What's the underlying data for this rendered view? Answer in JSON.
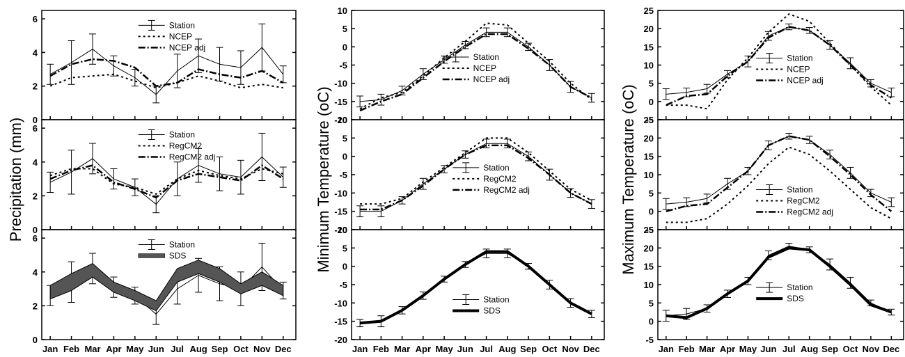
{
  "months": [
    "Jan",
    "Feb",
    "Mar",
    "Apr",
    "May",
    "Jun",
    "Jul",
    "Aug",
    "Sep",
    "Oct",
    "Nov",
    "Dec"
  ],
  "chart_data": [
    {
      "id": "precip-ncep",
      "type": "line",
      "column": 0,
      "row": 0,
      "ylabel": "Precipitation (mm)",
      "ylim": [
        0,
        6.5
      ],
      "yticks": [
        0,
        2,
        4,
        6
      ],
      "legend": [
        "Station",
        "NCEP",
        "NCEP adj"
      ],
      "legend_position": "top-center",
      "series": [
        {
          "name": "Station",
          "style": "errorbar",
          "values": [
            2.7,
            3.4,
            4.2,
            3.2,
            2.5,
            1.5,
            2.9,
            3.8,
            3.3,
            3.1,
            4.3,
            2.7
          ],
          "err": [
            0.6,
            1.3,
            0.9,
            0.6,
            0.5,
            0.5,
            1.0,
            1.0,
            1.0,
            1.0,
            1.4,
            0.5
          ]
        },
        {
          "name": "NCEP",
          "style": "dotted",
          "values": [
            2.0,
            2.5,
            2.6,
            2.7,
            2.3,
            1.9,
            2.2,
            2.6,
            2.3,
            1.9,
            2.1,
            1.9
          ]
        },
        {
          "name": "NCEP adj",
          "style": "dashdot",
          "values": [
            2.6,
            3.3,
            3.6,
            3.5,
            3.1,
            2.0,
            2.2,
            3.0,
            2.7,
            2.5,
            2.9,
            2.2
          ]
        }
      ]
    },
    {
      "id": "precip-regcm2",
      "type": "line",
      "column": 0,
      "row": 1,
      "ylim": [
        0,
        6.5
      ],
      "yticks": [
        0,
        2,
        4,
        6
      ],
      "legend": [
        "Station",
        "RegCM2",
        "RegCM2 adj"
      ],
      "legend_position": "top-center",
      "series": [
        {
          "name": "Station",
          "style": "errorbar",
          "values": [
            2.8,
            3.4,
            4.2,
            3.0,
            2.5,
            1.5,
            3.0,
            3.8,
            3.3,
            3.1,
            4.3,
            3.1
          ],
          "err": [
            0.6,
            1.3,
            0.9,
            0.6,
            0.5,
            0.5,
            1.0,
            1.0,
            1.0,
            1.0,
            1.4,
            0.6
          ]
        },
        {
          "name": "RegCM2",
          "style": "dotted",
          "values": [
            3.2,
            3.6,
            3.6,
            2.7,
            2.5,
            2.1,
            3.0,
            3.5,
            3.2,
            3.0,
            3.6,
            3.3
          ]
        },
        {
          "name": "RegCM2 adj",
          "style": "dashdot",
          "values": [
            3.0,
            3.5,
            3.8,
            2.8,
            2.4,
            1.9,
            2.9,
            3.3,
            3.1,
            2.9,
            3.8,
            3.0
          ]
        }
      ]
    },
    {
      "id": "precip-sds",
      "type": "line",
      "column": 0,
      "row": 2,
      "ylim": [
        0,
        6.5
      ],
      "yticks": [
        0,
        2,
        4,
        6
      ],
      "legend": [
        "Station",
        "SDS"
      ],
      "legend_position": "top-center",
      "series": [
        {
          "name": "Station",
          "style": "errorbar",
          "values": [
            2.6,
            3.4,
            4.2,
            3.1,
            2.6,
            1.5,
            3.0,
            3.8,
            3.3,
            3.0,
            4.3,
            2.9
          ],
          "err": [
            0.6,
            1.2,
            0.9,
            0.6,
            0.5,
            0.6,
            0.9,
            1.0,
            1.0,
            1.0,
            1.4,
            0.5
          ]
        },
        {
          "name": "SDS",
          "style": "band",
          "values": [
            2.8,
            3.4,
            4.1,
            3.1,
            2.6,
            2.0,
            3.8,
            4.3,
            3.8,
            3.0,
            3.6,
            2.9
          ],
          "spread": [
            0.4,
            0.5,
            0.4,
            0.3,
            0.3,
            0.3,
            0.4,
            0.4,
            0.4,
            0.3,
            0.4,
            0.3
          ]
        }
      ]
    },
    {
      "id": "tmin-ncep",
      "type": "line",
      "column": 1,
      "row": 0,
      "ylim": [
        -20,
        10
      ],
      "yticks": [
        -20,
        -15,
        -10,
        -5,
        0,
        5,
        10
      ],
      "legend": [
        "Station",
        "NCEP",
        "NCEP adj"
      ],
      "legend_position": "center-left",
      "series": [
        {
          "name": "Station",
          "style": "errorbar",
          "values": [
            -15,
            -14.5,
            -12,
            -7.5,
            -3.5,
            0.5,
            4,
            4,
            0,
            -5,
            -11,
            -14
          ],
          "err": [
            1.5,
            1.5,
            1.2,
            1.5,
            1.0,
            1.0,
            1.2,
            1.2,
            1.0,
            1.5,
            1.5,
            1.2
          ]
        },
        {
          "name": "NCEP",
          "style": "dotted",
          "values": [
            -17,
            -14,
            -12.5,
            -8,
            -3,
            1.5,
            6.5,
            6,
            1,
            -4,
            -10,
            -14.5
          ]
        },
        {
          "name": "NCEP adj",
          "style": "dashdot",
          "values": [
            -17.5,
            -15,
            -13,
            -8.5,
            -4,
            0,
            3.5,
            3.5,
            -0.5,
            -5,
            -11,
            -14
          ]
        }
      ]
    },
    {
      "id": "tmin-regcm2",
      "type": "line",
      "column": 1,
      "row": 1,
      "ylim": [
        -20,
        10
      ],
      "yticks": [
        -20,
        -15,
        -10,
        -5,
        0,
        5,
        10
      ],
      "legend": [
        "Station",
        "RegCM2",
        "RegCM2 adj"
      ],
      "legend_position": "center-right",
      "series": [
        {
          "name": "Station",
          "style": "errorbar",
          "values": [
            -15,
            -15,
            -12,
            -7.5,
            -3.5,
            0.5,
            3.5,
            3.5,
            0,
            -5,
            -10,
            -13
          ],
          "err": [
            1.5,
            1.5,
            1.0,
            1.5,
            1.0,
            1.0,
            1.2,
            1.2,
            1.2,
            1.5,
            1.2,
            1.2
          ]
        },
        {
          "name": "RegCM2",
          "style": "dotted",
          "values": [
            -13,
            -13,
            -11.5,
            -7,
            -3,
            1,
            5,
            5,
            1,
            -4,
            -9,
            -12
          ]
        },
        {
          "name": "RegCM2 adj",
          "style": "dashdot",
          "values": [
            -14.5,
            -14.5,
            -12,
            -8,
            -3.5,
            0.5,
            3,
            3,
            -0.5,
            -5,
            -10,
            -13
          ]
        }
      ]
    },
    {
      "id": "tmin-sds",
      "type": "line",
      "column": 1,
      "row": 2,
      "ylim": [
        -20,
        10
      ],
      "yticks": [
        -20,
        -15,
        -10,
        -5,
        0,
        5,
        10
      ],
      "legend": [
        "Station",
        "SDS"
      ],
      "legend_position": "bottom-right",
      "series": [
        {
          "name": "Station",
          "style": "errorbar",
          "values": [
            -15.5,
            -15,
            -12,
            -8,
            -3.5,
            0.5,
            3.5,
            3.5,
            0,
            -5,
            -10,
            -13
          ],
          "err": [
            1.0,
            1.5,
            1.0,
            1.0,
            0.8,
            0.8,
            1.2,
            1.2,
            0.8,
            1.2,
            1.2,
            1.0
          ]
        },
        {
          "name": "SDS",
          "style": "thick",
          "values": [
            -15.5,
            -15,
            -12,
            -8,
            -3.5,
            0.5,
            4,
            4,
            0,
            -5,
            -10,
            -13
          ]
        }
      ]
    },
    {
      "id": "tmax-ncep",
      "type": "line",
      "column": 2,
      "row": 0,
      "ylabel": "Maximum Temperature (oC)",
      "ylim": [
        -5,
        25
      ],
      "yticks": [
        -5,
        0,
        5,
        10,
        15,
        20,
        25
      ],
      "legend": [
        "Station",
        "NCEP",
        "NCEP adj"
      ],
      "legend_position": "center-right",
      "series": [
        {
          "name": "Station",
          "style": "errorbar",
          "values": [
            2,
            2.5,
            3.5,
            7.5,
            11,
            18,
            20.5,
            19.5,
            15.5,
            10.5,
            5,
            2.5
          ],
          "err": [
            1.5,
            1.2,
            1.2,
            1.0,
            1.5,
            1.2,
            0.8,
            0.8,
            1.2,
            1.5,
            1.0,
            1.2
          ]
        },
        {
          "name": "NCEP",
          "style": "dotted",
          "values": [
            -1,
            -1,
            -2,
            6,
            12,
            19,
            24,
            22,
            16,
            10,
            4,
            -1
          ]
        },
        {
          "name": "NCEP adj",
          "style": "dashdot",
          "values": [
            -1,
            1.5,
            2,
            7,
            11,
            17.5,
            20.5,
            19.5,
            15.5,
            10,
            4.5,
            1
          ]
        }
      ]
    },
    {
      "id": "tmax-regcm2",
      "type": "line",
      "column": 2,
      "row": 1,
      "ylim": [
        -5,
        25
      ],
      "yticks": [
        -5,
        0,
        5,
        10,
        15,
        20,
        25
      ],
      "legend": [
        "Station",
        "RegCM2",
        "RegCM2 adj"
      ],
      "legend_position": "bottom-right",
      "series": [
        {
          "name": "Station",
          "style": "errorbar",
          "values": [
            2,
            2.5,
            3.5,
            7.5,
            11,
            18,
            20.5,
            19.5,
            15.5,
            10.5,
            5,
            2.5
          ],
          "err": [
            1.5,
            1.2,
            1.2,
            1.5,
            1.0,
            1.2,
            0.8,
            1.0,
            1.2,
            1.5,
            1.0,
            1.2
          ]
        },
        {
          "name": "RegCM2",
          "style": "dotted",
          "values": [
            -3,
            -3,
            -2,
            2,
            7,
            13,
            17.5,
            15.5,
            11,
            6,
            1,
            -2
          ]
        },
        {
          "name": "RegCM2 adj",
          "style": "dashdot",
          "values": [
            0,
            1.5,
            2,
            6.5,
            11,
            18,
            20.5,
            19.5,
            15,
            10,
            4.5,
            0
          ]
        }
      ]
    },
    {
      "id": "tmax-sds",
      "type": "line",
      "column": 2,
      "row": 2,
      "ylim": [
        -5,
        25
      ],
      "yticks": [
        -5,
        0,
        5,
        10,
        15,
        20,
        25
      ],
      "legend": [
        "Station",
        "SDS"
      ],
      "legend_position": "center",
      "series": [
        {
          "name": "Station",
          "style": "errorbar",
          "values": [
            1.5,
            2,
            3.5,
            7.5,
            11,
            18,
            20.5,
            19.5,
            15.5,
            10.5,
            5,
            2.5
          ],
          "err": [
            1.5,
            1.5,
            1.0,
            1.0,
            1.0,
            1.2,
            0.8,
            0.8,
            1.5,
            1.5,
            0.8,
            0.8
          ]
        },
        {
          "name": "SDS",
          "style": "thick",
          "values": [
            1.5,
            1,
            3.5,
            7.5,
            11,
            17.5,
            20,
            19.5,
            15,
            10,
            4.5,
            2.5
          ]
        }
      ]
    }
  ],
  "shared_ylabel": "Minimum Temperature (oC)"
}
